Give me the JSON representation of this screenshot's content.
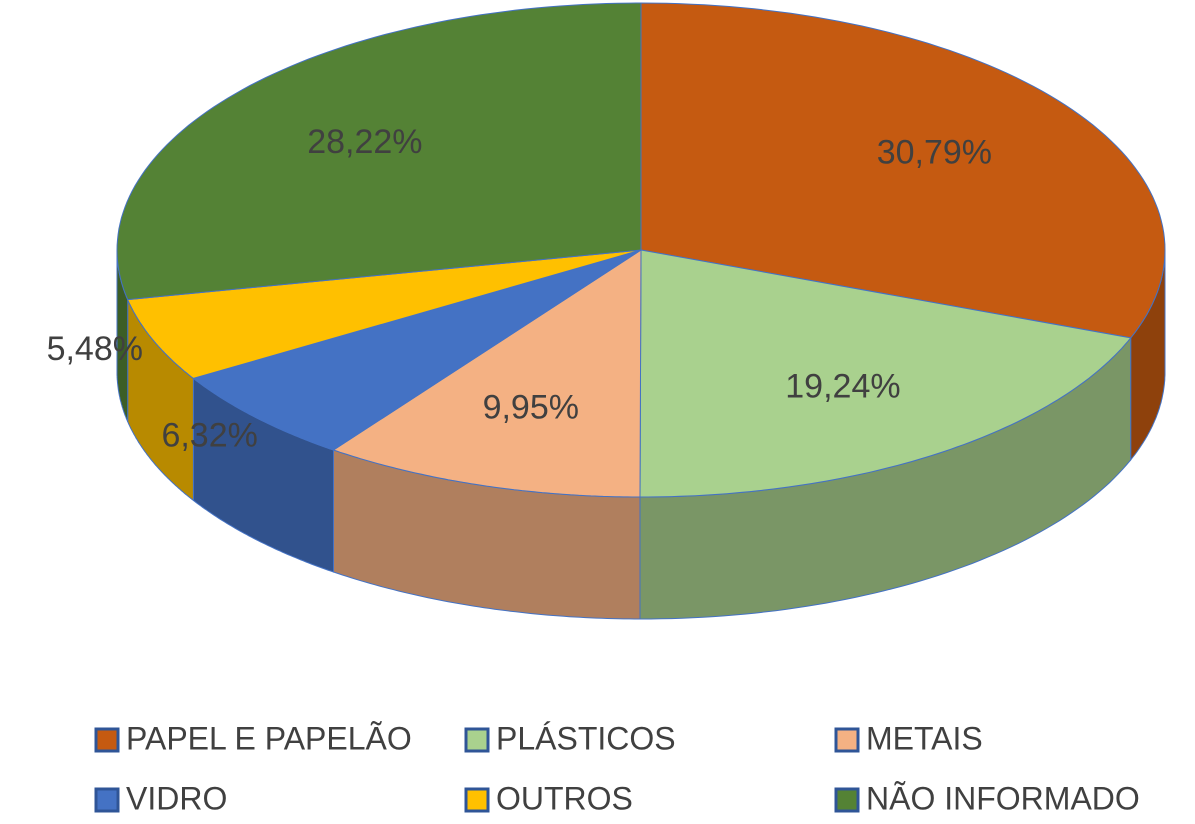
{
  "chart_data": {
    "type": "pie",
    "three_d": true,
    "categories": [
      "PAPEL E PAPELÃO",
      "PLÁSTICOS",
      "METAIS",
      "VIDRO",
      "OUTROS",
      "NÃO INFORMADO"
    ],
    "values": [
      30.79,
      19.24,
      9.95,
      6.32,
      5.48,
      28.22
    ],
    "value_labels": [
      "30,79%",
      "19,24%",
      "9,95%",
      "6,32%",
      "5,48%",
      "28,22%"
    ],
    "colors": [
      "#c55a11",
      "#a9d18e",
      "#f4b183",
      "#4472c4",
      "#ffc000",
      "#548235"
    ],
    "legend": "bottom"
  }
}
